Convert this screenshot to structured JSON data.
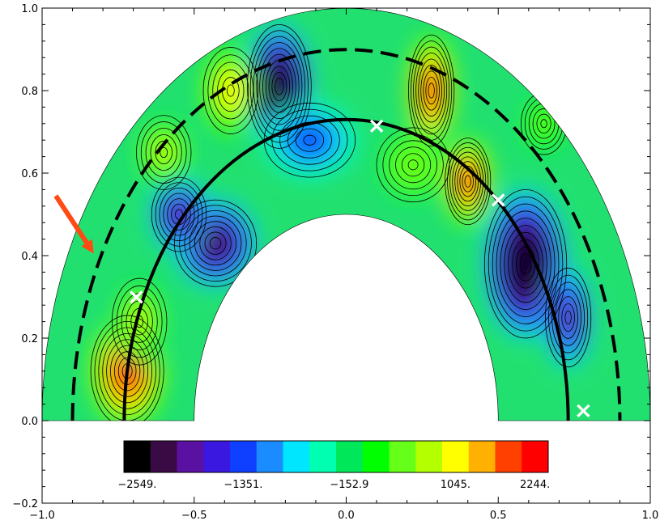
{
  "chart_data": {
    "type": "heatmap",
    "title": "",
    "xlabel": "",
    "ylabel": "",
    "xlim": [
      -1.0,
      1.0
    ],
    "ylim": [
      -0.2,
      1.0
    ],
    "xticks": [
      "−1.0",
      "−0.5",
      "0.0",
      "0.5",
      "1.0"
    ],
    "yticks": [
      "−0.2",
      "0.0",
      "0.2",
      "0.4",
      "0.6",
      "0.8",
      "1.0"
    ],
    "xtick_values": [
      -1.0,
      -0.5,
      0.0,
      0.5,
      1.0
    ],
    "ytick_values": [
      -0.2,
      0.0,
      0.2,
      0.4,
      0.6,
      0.8,
      1.0
    ],
    "domain": {
      "shape": "half-annulus",
      "inner_radius": 0.5,
      "outer_radius": 1.0
    },
    "colorbar": {
      "colors": [
        "#000000",
        "#3a0a45",
        "#5a10a0",
        "#3a18e0",
        "#1040ff",
        "#1a8cff",
        "#00e6ff",
        "#00ffb0",
        "#00e85a",
        "#00ff00",
        "#66ff1a",
        "#b4ff00",
        "#ffff00",
        "#ffb000",
        "#ff4000",
        "#ff0000"
      ],
      "labels": [
        "−2549.",
        "−1351.",
        "−152.9",
        "1045.",
        "2244."
      ],
      "label_values": [
        -2549,
        -1351,
        -152.9,
        1045,
        2244
      ],
      "min": -2549,
      "max": 2244
    },
    "background_value_color": "#22e070",
    "blobs": [
      {
        "x": -0.22,
        "y": 0.81,
        "rx": 0.07,
        "ry": 0.1,
        "value": -2549
      },
      {
        "x": 0.59,
        "y": 0.38,
        "rx": 0.09,
        "ry": 0.12,
        "value": -2549
      },
      {
        "x": -0.43,
        "y": 0.43,
        "rx": 0.09,
        "ry": 0.07,
        "value": -1800
      },
      {
        "x": -0.55,
        "y": 0.5,
        "rx": 0.06,
        "ry": 0.06,
        "value": -1600
      },
      {
        "x": 0.73,
        "y": 0.25,
        "rx": 0.05,
        "ry": 0.08,
        "value": -1700
      },
      {
        "x": -0.12,
        "y": 0.68,
        "rx": 0.1,
        "ry": 0.06,
        "value": -1000
      },
      {
        "x": -0.72,
        "y": 0.12,
        "rx": 0.08,
        "ry": 0.09,
        "value": 2244
      },
      {
        "x": 0.28,
        "y": 0.8,
        "rx": 0.05,
        "ry": 0.09,
        "value": 2244
      },
      {
        "x": 0.4,
        "y": 0.58,
        "rx": 0.05,
        "ry": 0.07,
        "value": 2244
      },
      {
        "x": -0.68,
        "y": 0.24,
        "rx": 0.06,
        "ry": 0.07,
        "value": 1100
      },
      {
        "x": -0.6,
        "y": 0.65,
        "rx": 0.06,
        "ry": 0.06,
        "value": 900
      },
      {
        "x": -0.38,
        "y": 0.8,
        "rx": 0.06,
        "ry": 0.07,
        "value": 1200
      },
      {
        "x": 0.22,
        "y": 0.62,
        "rx": 0.08,
        "ry": 0.06,
        "value": 700
      },
      {
        "x": 0.65,
        "y": 0.72,
        "rx": 0.05,
        "ry": 0.05,
        "value": 500
      }
    ],
    "solid_arc_radius": 0.73,
    "dashed_arc_radius": 0.9,
    "markers": [
      {
        "x": -0.69,
        "y": 0.3,
        "symbol": "×",
        "color": "#ffffff"
      },
      {
        "x": 0.1,
        "y": 0.715,
        "symbol": "×",
        "color": "#ffffff"
      },
      {
        "x": 0.5,
        "y": 0.535,
        "symbol": "×",
        "color": "#ffffff"
      },
      {
        "x": 0.78,
        "y": 0.025,
        "symbol": "×",
        "color": "#ffffff"
      }
    ],
    "arrow": {
      "tail_x": -0.955,
      "tail_y": 0.545,
      "head_x": -0.83,
      "head_y": 0.405,
      "color": "#ff4a14"
    },
    "grid": false,
    "legend": "none"
  }
}
